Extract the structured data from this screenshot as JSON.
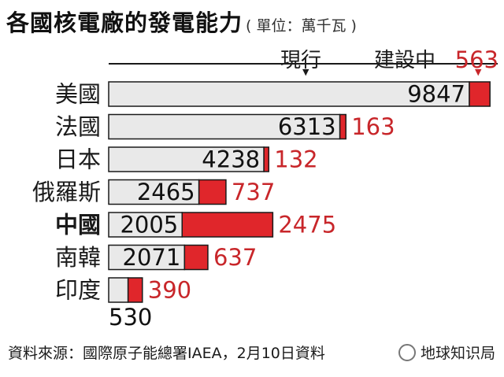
{
  "header": {
    "title": "各國核電廠的發電能力",
    "unit": "( 單位：萬千瓦 )"
  },
  "legend": {
    "current": "現行",
    "construction": "建設中"
  },
  "colors": {
    "current_fill": "#e9e9e9",
    "construction_fill": "#e0262b",
    "construction_label": "#c8262a"
  },
  "chart_data": {
    "type": "bar",
    "orientation": "horizontal",
    "stacked": true,
    "title": "各國核電廠的發電能力",
    "unit": "單位：萬千瓦",
    "categories": [
      "美國",
      "法國",
      "日本",
      "俄羅斯",
      "中國",
      "南韓",
      "印度"
    ],
    "highlight_category": "中國",
    "series": [
      {
        "name": "現行",
        "values": [
          9847,
          6313,
          4238,
          2465,
          2005,
          2071,
          530
        ]
      },
      {
        "name": "建設中",
        "values": [
          563,
          163,
          132,
          737,
          2475,
          637,
          390
        ]
      }
    ],
    "value_labels": {
      "current": [
        "9847",
        "6313",
        "4238",
        "2465",
        "2005",
        "2071",
        "530"
      ],
      "construction": [
        "563",
        "163",
        "132",
        "737",
        "2475",
        "637",
        "390"
      ]
    }
  },
  "footer": {
    "source": "資料來源：國際原子能總署IAEA，2月10日資料"
  },
  "watermark": {
    "text": "地球知识局",
    "icon": "wechat-icon"
  }
}
